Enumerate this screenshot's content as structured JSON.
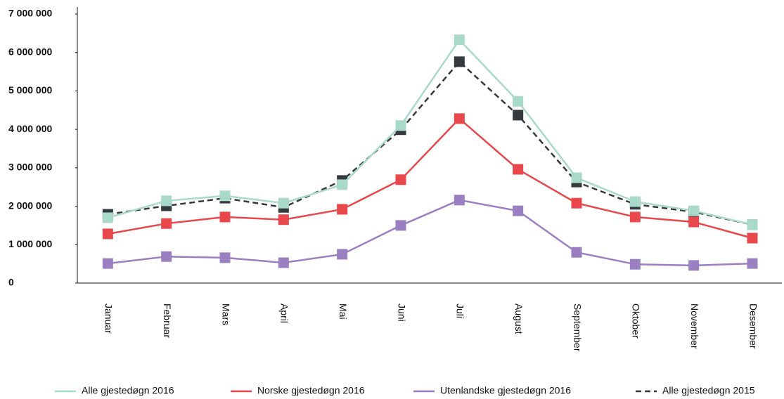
{
  "chart_data": {
    "type": "line",
    "categories": [
      "Januar",
      "Februar",
      "Mars",
      "April",
      "Mai",
      "Juni",
      "Juli",
      "August",
      "September",
      "Oktober",
      "November",
      "Desember"
    ],
    "series": [
      {
        "name": "Alle gjestedøgn 2015",
        "color": "#343a3d",
        "dashed": true,
        "values": [
          1790000,
          2010000,
          2210000,
          1970000,
          2670000,
          3990000,
          5760000,
          4370000,
          2630000,
          2050000,
          1850000,
          1520000
        ]
      },
      {
        "name": "Alle gjestedøgn 2016",
        "color": "#a9d9c8",
        "dashed": false,
        "values": [
          1700000,
          2140000,
          2270000,
          2080000,
          2560000,
          4100000,
          6330000,
          4730000,
          2740000,
          2120000,
          1880000,
          1520000
        ]
      },
      {
        "name": "Norske gjestedøgn 2016",
        "color": "#e8474c",
        "dashed": false,
        "values": [
          1280000,
          1550000,
          1720000,
          1650000,
          1920000,
          2690000,
          4280000,
          2960000,
          2080000,
          1720000,
          1590000,
          1170000
        ]
      },
      {
        "name": "Utenlandske gjestedøgn 2016",
        "color": "#9b80c1",
        "dashed": false,
        "values": [
          510000,
          690000,
          660000,
          530000,
          750000,
          1500000,
          2160000,
          1880000,
          800000,
          490000,
          460000,
          510000
        ]
      }
    ],
    "ylim": [
      0,
      7000000
    ],
    "yticks": [
      0,
      {
        "value": 1000000,
        "label": "1 000 000"
      },
      {
        "value": 2000000,
        "label": "2 000 000"
      },
      {
        "value": 3000000,
        "label": "3 000 000"
      },
      {
        "value": 4000000,
        "label": "4 000 000"
      },
      {
        "value": 5000000,
        "label": "5 000 000"
      },
      {
        "value": 6000000,
        "label": "6 000 000"
      },
      {
        "value": 7000000,
        "label": "7 000 000"
      }
    ],
    "grid": false,
    "legend": "bottom"
  }
}
